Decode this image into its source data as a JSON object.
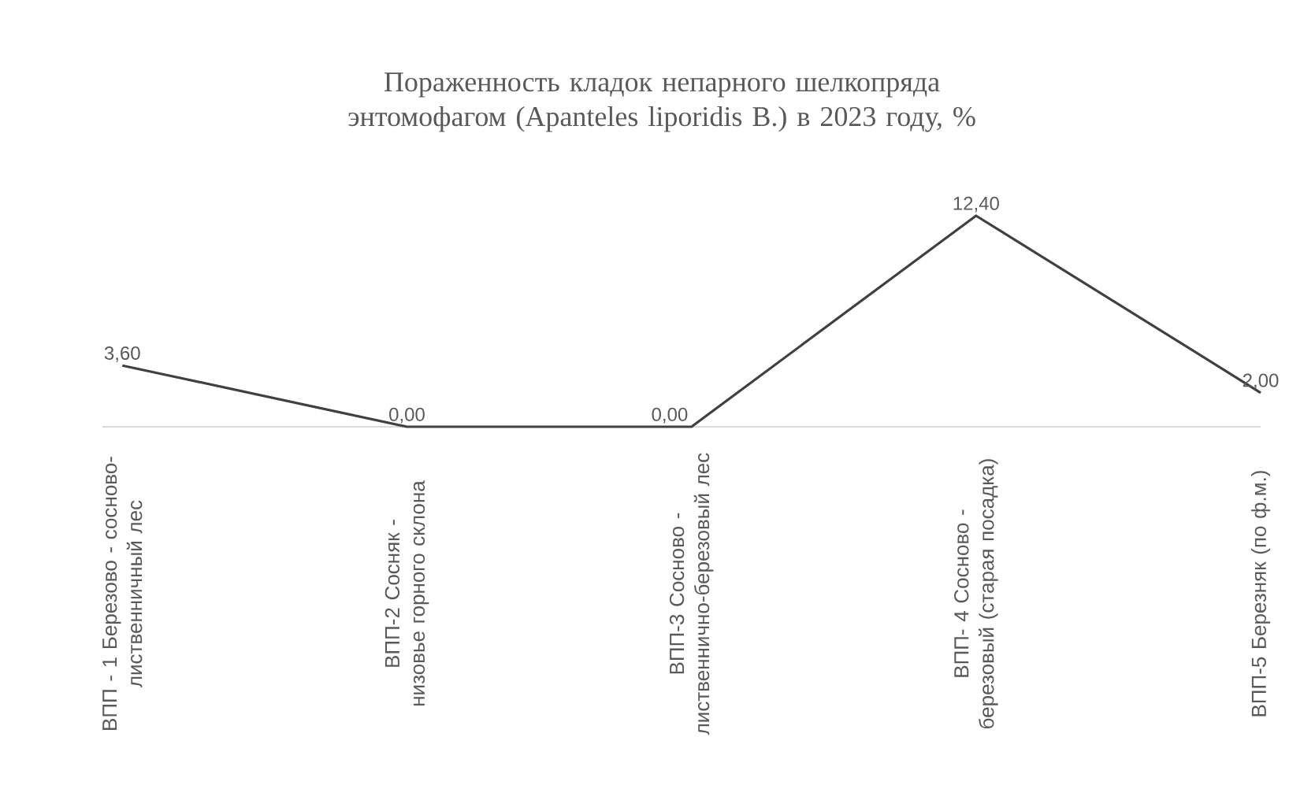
{
  "chart_data": {
    "type": "line",
    "title": "Пораженность кладок непарного шелкопряда энтомофагом (Apanteles liporidis B.) в 2023 году, %",
    "categories": [
      "ВПП - 1 Березово - сосново-лиственничный лес",
      "ВПП-2 Сосняк -низовье горного склона",
      "ВПП-3 Сосново - лиственнично-березовый лес",
      "ВПП- 4 Сосново - березовый (старая посадка)",
      "ВПП-5 Березняк (по ф.м.)"
    ],
    "values": [
      3.6,
      0,
      0,
      12.4,
      2.0
    ],
    "value_labels": [
      "3,60",
      "0,00",
      "0,00",
      "12,40",
      "2,00"
    ],
    "color": "#404040"
  }
}
